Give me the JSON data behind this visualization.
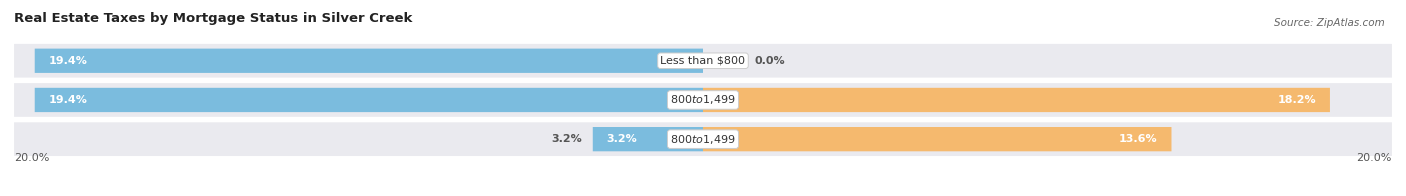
{
  "title": "Real Estate Taxes by Mortgage Status in Silver Creek",
  "source": "Source: ZipAtlas.com",
  "rows": [
    {
      "label": "Less than $800",
      "without_mortgage": 19.4,
      "with_mortgage": 0.0
    },
    {
      "label": "$800 to $1,499",
      "without_mortgage": 19.4,
      "with_mortgage": 18.2
    },
    {
      "label": "$800 to $1,499",
      "without_mortgage": 3.2,
      "with_mortgage": 13.6
    }
  ],
  "max_val": 20.0,
  "color_without": "#7BBCDE",
  "color_with": "#F5B96E",
  "color_without_light": "#AACFE8",
  "color_with_light": "#F8CFA0",
  "bg_row": "#EAEAEF",
  "bg_fig": "#FFFFFF",
  "title_fontsize": 9.5,
  "label_fontsize": 8.0,
  "tick_fontsize": 8.0,
  "bar_height": 0.62,
  "x_axis_label_left": "20.0%",
  "x_axis_label_right": "20.0%"
}
